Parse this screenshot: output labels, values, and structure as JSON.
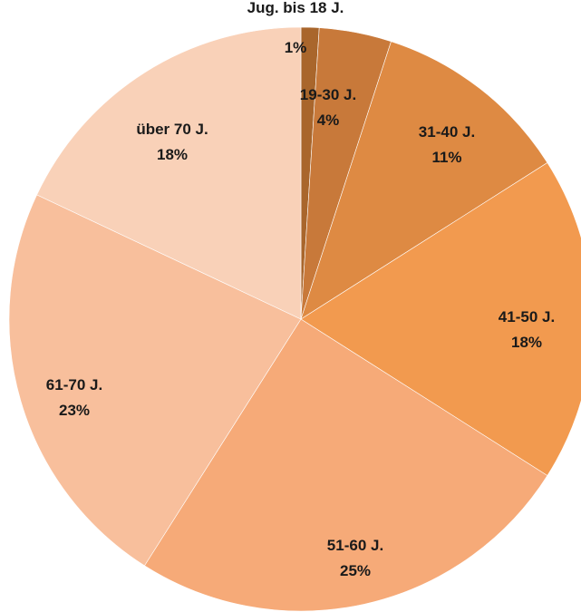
{
  "chart_data": {
    "type": "pie",
    "title": "",
    "start_angle_deg": 0,
    "direction": "clockwise",
    "slices": [
      {
        "label": "Jug. bis 18 J.",
        "value": 1,
        "pct_label": "1%",
        "color": "#a9662c"
      },
      {
        "label": "19-30 J.",
        "value": 4,
        "pct_label": "4%",
        "color": "#c8793a"
      },
      {
        "label": "31-40 J.",
        "value": 11,
        "pct_label": "11%",
        "color": "#de8a43"
      },
      {
        "label": "41-50 J.",
        "value": 18,
        "pct_label": "18%",
        "color": "#f29a4f"
      },
      {
        "label": "51-60 J.",
        "value": 25,
        "pct_label": "25%",
        "color": "#f6aa78"
      },
      {
        "label": "61-70 J.",
        "value": 23,
        "pct_label": "23%",
        "color": "#f8bf9c"
      },
      {
        "label": "über 70 J.",
        "value": 18,
        "pct_label": "18%",
        "color": "#f9d1b8"
      }
    ]
  }
}
